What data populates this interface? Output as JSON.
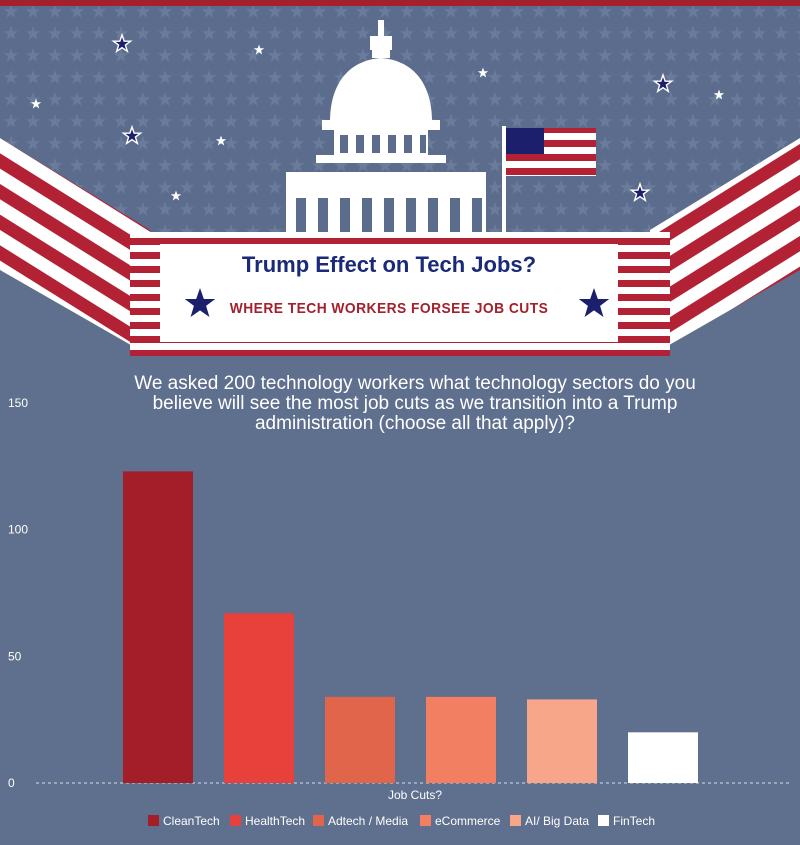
{
  "header": {
    "banner_title": "Trump Effect on Tech Jobs?",
    "banner_subtitle": "WHERE TECH WORKERS FORSEE JOB CUTS",
    "colors": {
      "red": "#b22234",
      "navy": "#1c1f6b",
      "sky": "#5f6f8e",
      "white": "#ffffff"
    }
  },
  "question": "We asked 200 technology workers what technology sectors do you believe will see the most job cuts as we transition into a Trump administration (choose all that apply)?",
  "chart_data": {
    "type": "bar",
    "categories": [
      "CleanTech",
      "HealthTech",
      "Adtech / Media",
      "eCommerce",
      "AI/ Big Data",
      "FinTech"
    ],
    "values": [
      123,
      67,
      34,
      34,
      33,
      20
    ],
    "colors": [
      "#a31e28",
      "#e8403a",
      "#e0654a",
      "#f27f62",
      "#f7a68a",
      "#ffffff"
    ],
    "ylim": [
      0,
      150
    ],
    "yticks": [
      0,
      50,
      100,
      150
    ],
    "xlabel": "Job Cuts?",
    "legend_position": "bottom",
    "grid": false
  }
}
